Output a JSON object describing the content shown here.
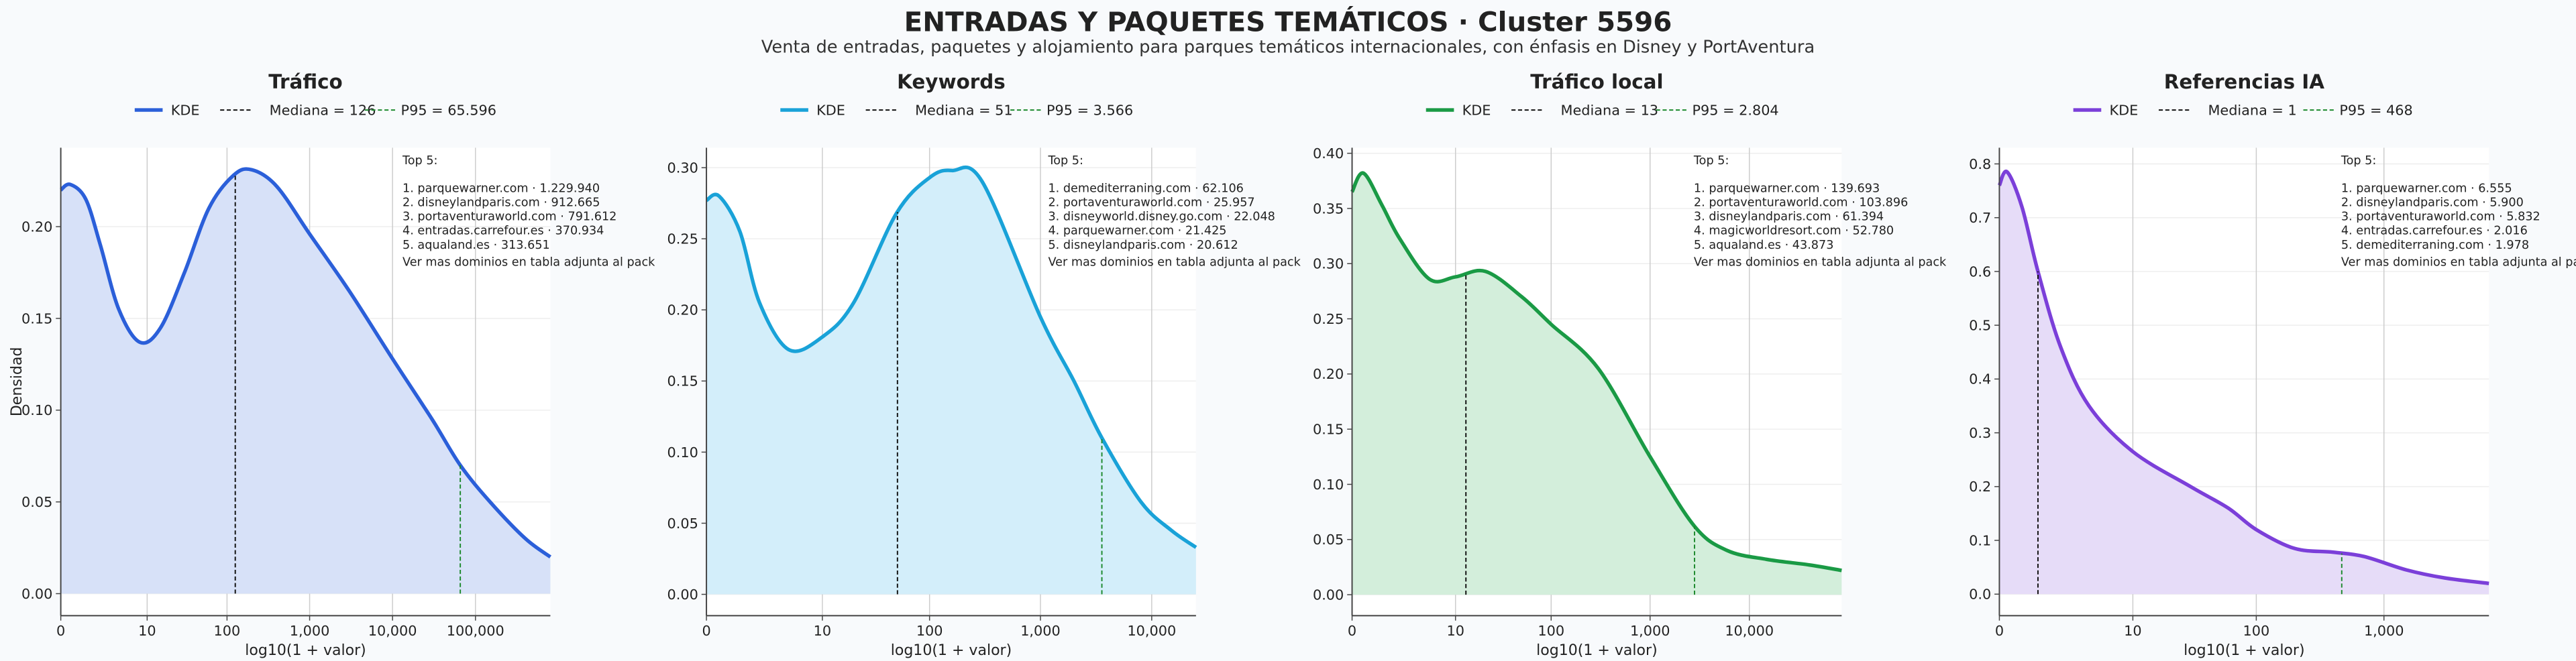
{
  "title": "ENTRADAS Y PAQUETES TEMÁTICOS · Cluster 5596",
  "subtitle": "Venta de entradas, paquetes y alojamiento para parques temáticos internacionales, con énfasis en Disney y PortAventura",
  "chart_data": [
    {
      "type": "area",
      "title": "Tráfico",
      "xlabel": "log10(1 + valor)",
      "ylabel": "Densidad",
      "xscale": "log1p",
      "grid": true,
      "xlim": [
        0,
        800000
      ],
      "ylim": [
        -0.012,
        0.243
      ],
      "xticks": [
        0,
        {
          "value": 10,
          "label": "10"
        },
        {
          "value": 100,
          "label": "100"
        },
        {
          "value": 1000,
          "label": "1,000"
        },
        {
          "value": 10000,
          "label": "10,000"
        },
        {
          "value": 100000,
          "label": "100,000"
        }
      ],
      "yticks": [
        {
          "value": 0,
          "label": "0.00"
        },
        {
          "value": 0.05,
          "label": "0.05"
        },
        {
          "value": 0.1,
          "label": "0.10"
        },
        {
          "value": 0.15,
          "label": "0.15"
        },
        {
          "value": 0.2,
          "label": "0.20"
        }
      ],
      "series": [
        {
          "name": "KDE",
          "color": "#2b5fd9",
          "fill_color": "#d7e1f8",
          "x": [
            0,
            0.3,
            1,
            2,
            4,
            8,
            15,
            30,
            60,
            120,
            200,
            400,
            1000,
            3000,
            10000,
            30000,
            65596,
            150000,
            400000,
            800000
          ],
          "values": [
            0.22,
            0.223,
            0.215,
            0.19,
            0.155,
            0.137,
            0.145,
            0.175,
            0.21,
            0.228,
            0.231,
            0.222,
            0.196,
            0.165,
            0.128,
            0.095,
            0.07,
            0.05,
            0.03,
            0.02
          ]
        }
      ],
      "median": {
        "value": 126,
        "label": "Mediana = 126",
        "color": "#111111"
      },
      "p95": {
        "value": 65596,
        "label": "P95 = 65.596",
        "color": "#1e8a2e"
      },
      "annotation": {
        "title": "Top 5:",
        "items": [
          "1. parquewarner.com · 1.229.940",
          "2. disneylandparis.com · 912.665",
          "3. portaventuraworld.com · 791.612",
          "4. entradas.carrefour.es · 370.934",
          "5. aqualand.es · 313.651"
        ],
        "note": "Ver mas dominios en tabla adjunta al pack"
      }
    },
    {
      "type": "area",
      "title": "Keywords",
      "xlabel": "log10(1 + valor)",
      "xscale": "log1p",
      "grid": true,
      "xlim": [
        0,
        25000
      ],
      "ylim": [
        -0.015,
        0.314
      ],
      "xticks": [
        0,
        {
          "value": 10,
          "label": "10"
        },
        {
          "value": 100,
          "label": "100"
        },
        {
          "value": 1000,
          "label": "1,000"
        },
        {
          "value": 10000,
          "label": "10,000"
        }
      ],
      "yticks": [
        {
          "value": 0,
          "label": "0.00"
        },
        {
          "value": 0.05,
          "label": "0.05"
        },
        {
          "value": 0.1,
          "label": "0.10"
        },
        {
          "value": 0.15,
          "label": "0.15"
        },
        {
          "value": 0.2,
          "label": "0.20"
        },
        {
          "value": 0.25,
          "label": "0.25"
        },
        {
          "value": 0.3,
          "label": "0.30"
        }
      ],
      "series": [
        {
          "name": "KDE",
          "color": "#19a2d8",
          "fill_color": "#d3eefa",
          "x": [
            0,
            0.3,
            1,
            2,
            4.5,
            10,
            20,
            50,
            100,
            160,
            300,
            1000,
            2000,
            3566,
            8000,
            15000,
            25000
          ],
          "values": [
            0.277,
            0.28,
            0.255,
            0.205,
            0.172,
            0.181,
            0.205,
            0.268,
            0.293,
            0.298,
            0.29,
            0.195,
            0.15,
            0.11,
            0.065,
            0.045,
            0.033
          ]
        }
      ],
      "median": {
        "value": 51,
        "label": "Mediana = 51",
        "color": "#111111"
      },
      "p95": {
        "value": 3566,
        "label": "P95 = 3.566",
        "color": "#1e8a2e"
      },
      "annotation": {
        "title": "Top 5:",
        "items": [
          "1. demediterraning.com · 62.106",
          "2. portaventuraworld.com · 25.957",
          "3. disneyworld.disney.go.com · 22.048",
          "4. parquewarner.com · 21.425",
          "5. disneylandparis.com · 20.612"
        ],
        "note": "Ver mas dominios en tabla adjunta al pack"
      }
    },
    {
      "type": "area",
      "title": "Tráfico local",
      "xlabel": "log10(1 + valor)",
      "xscale": "log1p",
      "grid": true,
      "xlim": [
        0,
        85000
      ],
      "ylim": [
        -0.019,
        0.405
      ],
      "xticks": [
        0,
        {
          "value": 10,
          "label": "10"
        },
        {
          "value": 100,
          "label": "100"
        },
        {
          "value": 1000,
          "label": "1,000"
        },
        {
          "value": 10000,
          "label": "10,000"
        }
      ],
      "yticks": [
        {
          "value": 0,
          "label": "0.00"
        },
        {
          "value": 0.05,
          "label": "0.05"
        },
        {
          "value": 0.1,
          "label": "0.10"
        },
        {
          "value": 0.15,
          "label": "0.15"
        },
        {
          "value": 0.2,
          "label": "0.20"
        },
        {
          "value": 0.25,
          "label": "0.25"
        },
        {
          "value": 0.3,
          "label": "0.30"
        },
        {
          "value": 0.35,
          "label": "0.35"
        },
        {
          "value": 0.4,
          "label": "0.40"
        }
      ],
      "series": [
        {
          "name": "KDE",
          "color": "#1a9a45",
          "fill_color": "#d3eedb",
          "x": [
            0,
            0.3,
            1,
            2,
            5,
            10,
            21,
            50,
            100,
            300,
            1000,
            2804,
            6000,
            15000,
            40000,
            85000
          ],
          "values": [
            0.365,
            0.382,
            0.353,
            0.323,
            0.286,
            0.288,
            0.293,
            0.27,
            0.245,
            0.205,
            0.125,
            0.062,
            0.04,
            0.032,
            0.027,
            0.022
          ]
        }
      ],
      "median": {
        "value": 13,
        "label": "Mediana = 13",
        "color": "#111111"
      },
      "p95": {
        "value": 2804,
        "label": "P95 = 2.804",
        "color": "#1e8a2e"
      },
      "annotation": {
        "title": "Top 5:",
        "items": [
          "1. parquewarner.com · 139.693",
          "2. portaventuraworld.com · 103.896",
          "3. disneylandparis.com · 61.394",
          "4. magicworldresort.com · 52.780",
          "5. aqualand.es · 43.873"
        ],
        "note": "Ver mas dominios en tabla adjunta al pack"
      }
    },
    {
      "type": "area",
      "title": "Referencias IA",
      "xlabel": "log10(1 + valor)",
      "xscale": "log1p",
      "grid": true,
      "xlim": [
        0,
        6600
      ],
      "ylim": [
        -0.04,
        0.83
      ],
      "xticks": [
        0,
        {
          "value": 10,
          "label": "10"
        },
        {
          "value": 100,
          "label": "100"
        },
        {
          "value": 1000,
          "label": "1,000"
        }
      ],
      "yticks": [
        {
          "value": 0,
          "label": "0.0"
        },
        {
          "value": 0.1,
          "label": "0.1"
        },
        {
          "value": 0.2,
          "label": "0.2"
        },
        {
          "value": 0.3,
          "label": "0.3"
        },
        {
          "value": 0.4,
          "label": "0.4"
        },
        {
          "value": 0.5,
          "label": "0.5"
        },
        {
          "value": 0.6,
          "label": "0.6"
        },
        {
          "value": 0.7,
          "label": "0.7"
        },
        {
          "value": 0.8,
          "label": "0.8"
        }
      ],
      "series": [
        {
          "name": "KDE",
          "color": "#7b3fd9",
          "fill_color": "#e6dcf8",
          "x": [
            0,
            0.15,
            0.5,
            1,
            2,
            4,
            10,
            30,
            60,
            100,
            200,
            400,
            700,
            1500,
            3000,
            6600
          ],
          "values": [
            0.76,
            0.785,
            0.72,
            0.6,
            0.46,
            0.35,
            0.265,
            0.2,
            0.16,
            0.12,
            0.085,
            0.078,
            0.07,
            0.045,
            0.03,
            0.02
          ]
        }
      ],
      "median": {
        "value": 1,
        "label": "Mediana = 1",
        "color": "#111111"
      },
      "p95": {
        "value": 468,
        "label": "P95 = 468",
        "color": "#1e8a2e"
      },
      "annotation": {
        "title": "Top 5:",
        "items": [
          "1. parquewarner.com · 6.555",
          "2. disneylandparis.com · 5.900",
          "3. portaventuraworld.com · 5.832",
          "4. entradas.carrefour.es · 2.016",
          "5. demediterraning.com · 1.978"
        ],
        "note": "Ver mas dominios en tabla adjunta al pack"
      }
    }
  ]
}
